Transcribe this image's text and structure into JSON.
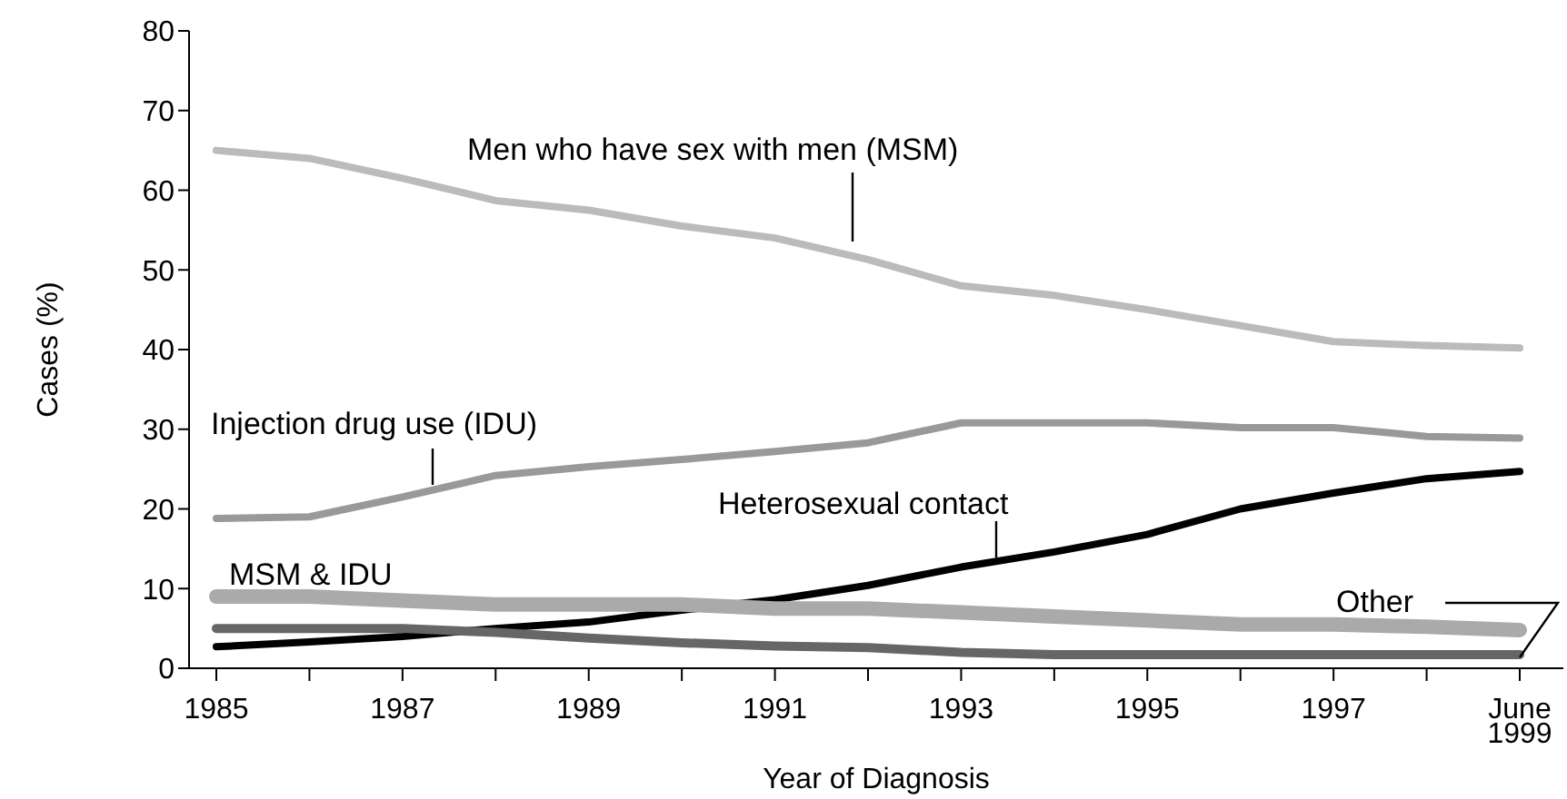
{
  "chart_data": {
    "type": "line",
    "xlabel": "Year of Diagnosis",
    "ylabel": "Cases (%)",
    "categories": [
      "1985",
      null,
      "1987",
      null,
      "1989",
      null,
      "1991",
      null,
      "1993",
      null,
      "1995",
      null,
      "1997",
      null,
      "June 1999"
    ],
    "ylim": [
      0,
      80
    ],
    "yticks": [
      0,
      10,
      20,
      30,
      40,
      50,
      60,
      70,
      80
    ],
    "marker": "none",
    "line_style": "solid",
    "series": [
      {
        "name": "Men who have sex with men (MSM)",
        "color": "#bbbbbb",
        "values": [
          65,
          64,
          61.5,
          58.7,
          57.5,
          55.5,
          54,
          51.3,
          48,
          46.8,
          45,
          43,
          41,
          40.5,
          40.2
        ]
      },
      {
        "name": "Injection drug use (IDU)",
        "color": "#999999",
        "values": [
          18.8,
          19,
          21.5,
          24.2,
          25.3,
          26.2,
          27.2,
          28.3,
          30.8,
          30.8,
          30.8,
          30.2,
          30.2,
          29.1,
          28.9
        ]
      },
      {
        "name": "Heterosexual contact",
        "color": "#000000",
        "values": [
          2.7,
          3.3,
          4,
          5,
          5.8,
          7.3,
          8.6,
          10.4,
          12.7,
          14.6,
          16.8,
          20,
          22,
          23.8,
          24.7
        ]
      },
      {
        "name": "MSM & IDU",
        "color": "#aaaaaa",
        "values": [
          9,
          9,
          8.5,
          8,
          8,
          8,
          7.5,
          7.5,
          7,
          6.5,
          6,
          5.5,
          5.5,
          5.2,
          4.8
        ]
      },
      {
        "name": "Other",
        "color": "#666666",
        "values": [
          5,
          5,
          5,
          4.5,
          3.8,
          3.2,
          2.8,
          2.6,
          2,
          1.7,
          1.7,
          1.7,
          1.7,
          1.7,
          1.7
        ]
      }
    ]
  }
}
